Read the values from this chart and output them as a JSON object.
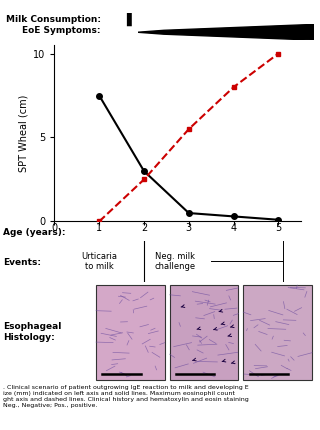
{
  "milk_label": "Milk Consumption:",
  "eoe_label": "EoE Symptoms:",
  "age_label": "Age (years):",
  "events_label": "Events:",
  "histo_label": "Esophageal\nHistology:",
  "ylabel": "SPT Wheal (cm)",
  "black_line_x": [
    1,
    2,
    3,
    4,
    5
  ],
  "black_line_y": [
    7.5,
    3.0,
    0.5,
    0.3,
    0.1
  ],
  "red_line_x": [
    1,
    2,
    3,
    4,
    5
  ],
  "red_line_y": [
    0,
    2.5,
    5.5,
    8.0,
    10.0
  ],
  "xlim": [
    0,
    5.5
  ],
  "ylim": [
    0,
    10.5
  ],
  "yticks": [
    0,
    5,
    10
  ],
  "xticks": [
    0,
    1,
    2,
    3,
    4,
    5
  ],
  "event1_text": "Urticaria\nto milk",
  "event2_text": "Neg. milk\nchallenge",
  "background_color": "#ffffff",
  "black_line_color": "#000000",
  "red_line_color": "#cc0000",
  "histo_color1": "#c8a0be",
  "histo_color2": "#c8a0be",
  "histo_color3": "#c8a0be",
  "caption_line1": ". Clinical scenario of patient outgrowing IgE reaction to milk and developing E",
  "caption_line2": "ize (mm) indicated on left axis and solid lines. Maximum eosinophil count",
  "caption_line3": "ght axis and dashed lines. Clinical history and hematoxylin and eosin staining",
  "caption_line4": "Neg., Negative; Pos., positive."
}
